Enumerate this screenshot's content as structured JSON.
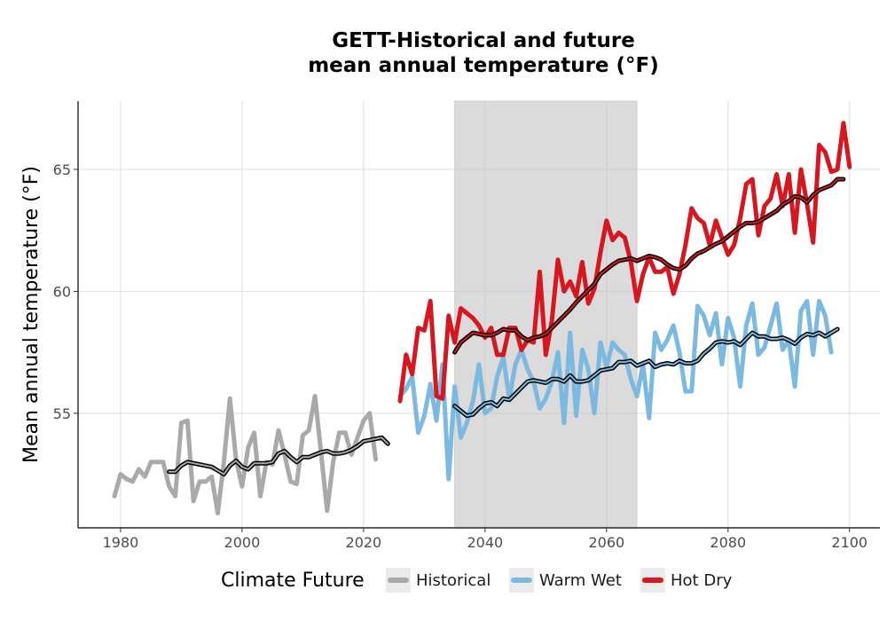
{
  "chart_data": {
    "type": "line",
    "title_line1": "GETT-Historical and future",
    "title_line2": "mean annual temperature (°F)",
    "xlabel": "",
    "ylabel": "Mean annual temperature (°F)",
    "xlim": [
      1973,
      2105
    ],
    "ylim": [
      50.3,
      67.8
    ],
    "x_ticks": [
      1980,
      2000,
      2020,
      2040,
      2060,
      2080,
      2100
    ],
    "y_ticks": [
      55,
      60,
      65
    ],
    "grid": true,
    "shaded_period": [
      2035,
      2065
    ],
    "legend_title": "Climate Future",
    "legend_position": "bottom",
    "series": [
      {
        "name": "Historical",
        "color": "#a9a9a9",
        "x_start": 1979,
        "values": [
          51.6,
          52.5,
          52.3,
          52.2,
          52.7,
          52.4,
          53.0,
          53.0,
          53.0,
          52.0,
          51.6,
          54.6,
          54.7,
          51.4,
          52.2,
          52.2,
          52.4,
          50.9,
          53.0,
          55.6,
          53.1,
          52.0,
          53.6,
          54.2,
          51.6,
          53.0,
          52.9,
          54.3,
          53.3,
          52.2,
          52.1,
          54.1,
          54.3,
          55.7,
          53.4,
          51.0,
          53.0,
          54.2,
          54.2,
          53.3,
          54.0,
          54.7,
          55.0,
          53.1
        ]
      },
      {
        "name": "Warm Wet",
        "color": "#7cb9e0",
        "x_start": 2026,
        "values": [
          55.7,
          56.0,
          56.5,
          54.2,
          54.9,
          56.2,
          54.7,
          57.0,
          52.3,
          56.1,
          54.0,
          54.6,
          55.5,
          57.0,
          55.0,
          55.2,
          56.5,
          57.3,
          55.6,
          57.0,
          57.6,
          56.8,
          56.3,
          55.2,
          55.6,
          56.3,
          57.5,
          54.6,
          58.3,
          54.9,
          57.6,
          56.8,
          55.0,
          57.9,
          56.9,
          57.9,
          57.6,
          57.4,
          56.4,
          55.7,
          57.0,
          54.8,
          58.3,
          57.6,
          58.0,
          58.6,
          57.5,
          55.9,
          55.9,
          59.4,
          59.0,
          58.2,
          59.1,
          57.0,
          58.9,
          58.1,
          56.1,
          58.6,
          59.5,
          57.4,
          57.7,
          58.6,
          59.5,
          57.6,
          58.0,
          56.1,
          59.2,
          59.6,
          57.4,
          59.6,
          59.0,
          57.5
        ]
      },
      {
        "name": "Hot Dry",
        "color": "#d6171f",
        "x_start": 2026,
        "values": [
          55.5,
          57.4,
          56.6,
          58.5,
          58.4,
          59.6,
          55.7,
          55.6,
          59.0,
          57.9,
          59.3,
          59.1,
          58.9,
          58.6,
          58.1,
          58.5,
          57.4,
          57.4,
          58.5,
          58.5,
          57.6,
          58.0,
          57.9,
          60.8,
          57.4,
          58.8,
          61.3,
          60.0,
          60.4,
          59.8,
          61.2,
          59.5,
          60.1,
          61.6,
          62.9,
          62.1,
          62.4,
          62.2,
          61.2,
          59.6,
          60.7,
          61.4,
          60.8,
          60.8,
          61.0,
          59.9,
          60.7,
          61.9,
          63.4,
          63.0,
          62.8,
          61.9,
          62.9,
          62.2,
          61.5,
          61.9,
          63.0,
          64.4,
          64.6,
          62.3,
          63.5,
          63.8,
          64.8,
          63.5,
          64.8,
          62.4,
          65.0,
          63.6,
          62.0,
          66.0,
          65.7,
          64.9,
          65.0,
          66.9,
          65.1
        ]
      }
    ],
    "smoothed": {
      "color": "#000000",
      "note": "rolling mean",
      "lines": [
        {
          "series": "Historical",
          "x_start": 1988,
          "values": [
            52.6,
            52.6,
            52.85,
            53.0,
            52.95,
            52.9,
            52.85,
            52.8,
            52.65,
            52.5,
            52.85,
            53.05,
            52.8,
            52.7,
            52.95,
            52.95,
            52.95,
            53.0,
            53.35,
            53.45,
            53.2,
            53.0,
            53.2,
            53.2,
            53.3,
            53.4,
            53.45,
            53.35,
            53.35,
            53.4,
            53.5,
            53.65,
            53.85,
            53.9,
            53.95,
            54.0,
            53.75
          ]
        },
        {
          "series": "Warm Wet",
          "x_start": 2035,
          "values": [
            55.3,
            55.1,
            54.9,
            54.95,
            55.2,
            55.4,
            55.45,
            55.3,
            55.6,
            55.55,
            55.8,
            56.05,
            56.3,
            56.35,
            56.3,
            56.25,
            56.4,
            56.4,
            56.3,
            56.55,
            56.3,
            56.3,
            56.35,
            56.55,
            56.75,
            56.8,
            56.85,
            57.1,
            57.1,
            57.15,
            56.95,
            57.05,
            57.15,
            56.9,
            57.0,
            57.05,
            57.0,
            57.15,
            57.05,
            57.05,
            57.15,
            57.45,
            57.65,
            57.9,
            57.95,
            57.9,
            57.95,
            57.8,
            58.05,
            58.3,
            58.15,
            58.15,
            58.05,
            58.05,
            58.1,
            58.0,
            57.85,
            58.1,
            58.25,
            58.2,
            58.3,
            58.15,
            58.3,
            58.45
          ]
        },
        {
          "series": "Hot Dry",
          "x_start": 2035,
          "values": [
            57.5,
            57.9,
            58.1,
            58.3,
            58.25,
            58.2,
            58.2,
            58.3,
            58.45,
            58.4,
            58.4,
            58.15,
            58.0,
            58.1,
            58.15,
            58.25,
            58.5,
            58.75,
            59.0,
            59.25,
            59.55,
            59.8,
            60.05,
            60.3,
            60.7,
            60.9,
            61.1,
            61.25,
            61.3,
            61.35,
            61.25,
            61.35,
            61.45,
            61.4,
            61.3,
            61.1,
            60.95,
            60.9,
            61.05,
            61.35,
            61.55,
            61.65,
            61.8,
            61.95,
            62.05,
            62.25,
            62.45,
            62.65,
            62.8,
            62.8,
            62.85,
            63.0,
            63.15,
            63.3,
            63.55,
            63.7,
            63.9,
            63.85,
            63.65,
            63.95,
            64.15,
            64.25,
            64.35,
            64.6,
            64.6
          ]
        }
      ]
    }
  }
}
